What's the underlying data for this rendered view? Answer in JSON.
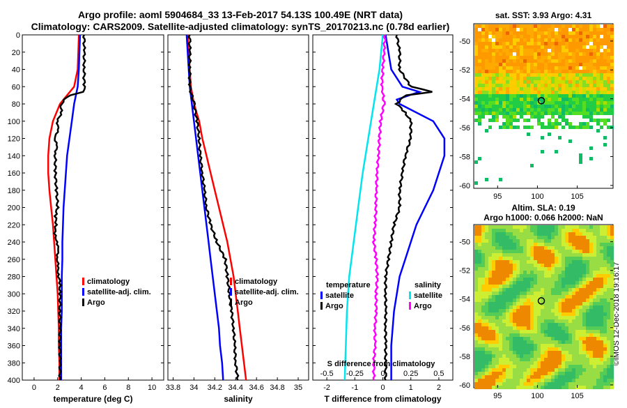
{
  "titles": {
    "line1": "Argo profile: aoml 5904684_33 13-Feb-2017 54.13S 100.49E (NRT data)",
    "line2": "Climatology: CARS2009. Satellite-adjusted climatology: synTS_20170213.nc (0.78d earlier)"
  },
  "map_titles": {
    "sst": "sat. SST: 3.93 Argo: 4.31",
    "altim1": "Altim. SLA: 0.19",
    "altim2": "Argo h1000: 0.066 h2000: NaN"
  },
  "watermark": "©IMOS 12-Dec-2018 19:16:17",
  "colors": {
    "climatology": "#ff0000",
    "satellite": "#0000ff",
    "argo": "#000000",
    "sat_salinity": "#00e5ee",
    "clim_salinity": "#ff00ff"
  },
  "chart_data": [
    {
      "type": "line",
      "id": "temperature",
      "xlabel": "temperature (deg C)",
      "ylabel": "depth",
      "xlim": [
        -1,
        11
      ],
      "ylim": [
        400,
        0
      ],
      "xticks": [
        "0",
        "2",
        "4",
        "6",
        "8",
        "10"
      ],
      "xtick_values": [
        0,
        2,
        4,
        6,
        8,
        10
      ],
      "yticks": [
        "0",
        "20",
        "40",
        "60",
        "80",
        "100",
        "120",
        "140",
        "160",
        "180",
        "200",
        "220",
        "240",
        "260",
        "280",
        "300",
        "320",
        "340",
        "360",
        "380",
        "400"
      ],
      "legend": [
        "climatology",
        "satellite-adj. clim.",
        "Argo"
      ],
      "series": [
        {
          "name": "climatology",
          "color": "#ff0000",
          "depth": [
            0,
            20,
            40,
            60,
            70,
            80,
            100,
            120,
            140,
            160,
            180,
            200,
            220,
            240,
            260,
            280,
            300,
            320,
            340,
            360,
            380,
            400
          ],
          "values": [
            3.8,
            3.75,
            3.7,
            3.4,
            2.8,
            2.2,
            1.6,
            1.3,
            1.2,
            1.2,
            1.3,
            1.45,
            1.6,
            1.7,
            1.8,
            1.9,
            2.0,
            2.05,
            2.1,
            2.1,
            2.15,
            2.15
          ]
        },
        {
          "name": "satellite-adj. clim.",
          "color": "#0000ff",
          "depth": [
            0,
            20,
            40,
            60,
            80,
            100,
            120,
            140,
            160,
            180,
            200,
            220,
            240,
            260,
            280,
            300,
            320,
            340,
            360,
            380,
            400
          ],
          "values": [
            3.9,
            3.85,
            3.8,
            3.7,
            3.4,
            3.2,
            3.0,
            2.8,
            2.7,
            2.6,
            2.5,
            2.45,
            2.4,
            2.4,
            2.35,
            2.35,
            2.35,
            2.3,
            2.3,
            2.3,
            2.3
          ]
        },
        {
          "name": "Argo",
          "color": "#000000",
          "depth": [
            0,
            20,
            40,
            60,
            66,
            70,
            75,
            80,
            90,
            100,
            110,
            120,
            130,
            140,
            160,
            180,
            200,
            210,
            220,
            230,
            240,
            250,
            260,
            270,
            280,
            290,
            300,
            320,
            340,
            360,
            380,
            400
          ],
          "values": [
            4.25,
            4.25,
            4.25,
            4.25,
            4.25,
            3.0,
            2.6,
            2.3,
            2.3,
            2.0,
            2.0,
            1.8,
            1.9,
            1.8,
            1.8,
            1.9,
            2.0,
            1.8,
            1.9,
            1.7,
            2.0,
            2.0,
            2.0,
            2.0,
            2.1,
            2.2,
            2.2,
            2.2,
            2.2,
            2.2,
            2.2,
            2.2
          ]
        }
      ]
    },
    {
      "type": "line",
      "id": "salinity",
      "xlabel": "salinity",
      "ylabel": "depth",
      "xlim": [
        33.75,
        35.1
      ],
      "ylim": [
        400,
        0
      ],
      "xticks": [
        "33.8",
        "34",
        "34.2",
        "34.4",
        "34.6",
        "34.8",
        "35"
      ],
      "xtick_values": [
        33.8,
        34.0,
        34.2,
        34.4,
        34.6,
        34.8,
        35.0
      ],
      "legend": [
        "climatology",
        "satellite-adj. clim.",
        "Argo"
      ],
      "series": [
        {
          "name": "climatology",
          "color": "#ff0000",
          "depth": [
            0,
            20,
            40,
            60,
            66,
            80,
            100,
            120,
            140,
            160,
            180,
            200,
            220,
            240,
            260,
            280,
            300,
            320,
            340,
            360,
            380,
            400
          ],
          "values": [
            33.94,
            33.95,
            33.96,
            33.97,
            33.98,
            34.0,
            34.05,
            34.08,
            34.12,
            34.16,
            34.2,
            34.24,
            34.28,
            34.32,
            34.35,
            34.38,
            34.4,
            34.42,
            34.44,
            34.46,
            34.48,
            34.5
          ]
        },
        {
          "name": "satellite-adj. clim.",
          "color": "#0000ff",
          "depth": [
            0,
            20,
            40,
            60,
            80,
            100,
            120,
            140,
            160,
            180,
            200,
            220,
            240,
            260,
            280,
            300,
            320,
            340,
            360,
            380,
            400
          ],
          "values": [
            33.93,
            33.94,
            33.95,
            33.96,
            33.98,
            34.0,
            34.02,
            34.04,
            34.06,
            34.08,
            34.1,
            34.12,
            34.14,
            34.16,
            34.18,
            34.2,
            34.22,
            34.24,
            34.25,
            34.27,
            34.28
          ]
        },
        {
          "name": "Argo",
          "color": "#000000",
          "depth": [
            0,
            20,
            40,
            60,
            66,
            80,
            100,
            120,
            140,
            160,
            180,
            200,
            220,
            240,
            260,
            280,
            300,
            320,
            340,
            360,
            380,
            400
          ],
          "values": [
            33.96,
            33.96,
            33.96,
            33.96,
            33.97,
            34.0,
            34.03,
            34.05,
            34.06,
            34.08,
            34.1,
            34.12,
            34.16,
            34.22,
            34.3,
            34.32,
            34.34,
            34.36,
            34.38,
            34.39,
            34.4,
            34.42
          ]
        }
      ]
    },
    {
      "type": "line",
      "id": "difference",
      "xlabel": "T difference from climatology",
      "xlabel2": "S difference from climatology",
      "ylabel": "depth",
      "xlim": [
        -2.5,
        2.5
      ],
      "ylim": [
        400,
        0
      ],
      "xticks": [
        "-2",
        "-1",
        "0",
        "1",
        "2"
      ],
      "xtick_values": [
        -2,
        -1,
        0,
        1,
        2
      ],
      "xticks2": [
        "-0.5",
        "-0.25",
        "0",
        "0.25",
        "0.5"
      ],
      "legend_temperature_title": "temperature",
      "legend_salinity_title": "salinity",
      "legend_temperature": [
        "satellite",
        "Argo"
      ],
      "legend_salinity": [
        "satellite",
        "Argo"
      ],
      "series": [
        {
          "name": "T satellite",
          "color": "#0000ff",
          "depth": [
            0,
            20,
            40,
            60,
            66,
            75,
            80,
            100,
            120,
            140,
            160,
            180,
            200,
            220,
            240,
            260,
            280,
            300,
            320,
            340,
            360,
            380,
            400
          ],
          "values": [
            0.1,
            0.2,
            0.3,
            0.7,
            1.3,
            0.5,
            0.6,
            1.8,
            2.2,
            2.2,
            2.0,
            1.8,
            1.5,
            1.2,
            1.0,
            0.8,
            0.6,
            0.5,
            0.4,
            0.35,
            0.3,
            0.3,
            0.3
          ]
        },
        {
          "name": "T Argo",
          "color": "#000000",
          "depth": [
            0,
            20,
            40,
            60,
            66,
            70,
            80,
            90,
            100,
            120,
            140,
            160,
            180,
            200,
            220,
            240,
            260,
            280,
            300,
            320,
            340,
            360,
            380,
            400
          ],
          "values": [
            0.5,
            0.6,
            0.6,
            1.0,
            1.8,
            0.8,
            0.5,
            0.8,
            1.0,
            1.0,
            0.8,
            0.7,
            0.6,
            0.6,
            0.4,
            0.3,
            0.2,
            0.1,
            0.1,
            0.1,
            0.1,
            0.1,
            0.1,
            0.1
          ]
        },
        {
          "name": "S satellite",
          "color": "#00e5ee",
          "depth": [
            0,
            40,
            80,
            120,
            160,
            200,
            240,
            280,
            320,
            360,
            400
          ],
          "values": [
            0.0,
            -0.03,
            -0.08,
            -0.13,
            -0.18,
            -0.22,
            -0.26,
            -0.3,
            -0.32,
            -0.33,
            -0.34
          ]
        },
        {
          "name": "S Argo",
          "color": "#ff00ff",
          "depth": [
            0,
            20,
            40,
            60,
            66,
            80,
            100,
            120,
            140,
            160,
            180,
            200,
            220,
            240,
            260,
            280,
            300,
            320,
            340,
            360,
            380,
            400
          ],
          "values": [
            0.02,
            0.01,
            0.0,
            -0.01,
            0.0,
            0.01,
            -0.02,
            -0.03,
            -0.04,
            -0.05,
            -0.06,
            -0.06,
            -0.07,
            -0.08,
            -0.06,
            -0.05,
            -0.06,
            -0.06,
            -0.07,
            -0.07,
            -0.08,
            -0.08
          ]
        }
      ]
    },
    {
      "type": "heatmap",
      "id": "sst-map",
      "title": "sat. SST: 3.93 Argo: 4.31",
      "xticks": [
        "95",
        "100",
        "105"
      ],
      "xtick_values": [
        95,
        100,
        105
      ],
      "yticks": [
        "-50",
        "-52",
        "-54",
        "-56",
        "-58",
        "-60"
      ],
      "ytick_values": [
        -50,
        -52,
        -54,
        -56,
        -58,
        -60
      ],
      "xlim": [
        92,
        109.5
      ],
      "ylim": [
        -60.2,
        -48.8
      ],
      "argo_position": [
        100.49,
        -54.13
      ]
    },
    {
      "type": "heatmap",
      "id": "sla-map",
      "title": "Altim. SLA: 0.19",
      "xticks": [
        "95",
        "100",
        "105"
      ],
      "xtick_values": [
        95,
        100,
        105
      ],
      "yticks": [
        "-50",
        "-52",
        "-54",
        "-56",
        "-58",
        "-60"
      ],
      "ytick_values": [
        -50,
        -52,
        -54,
        -56,
        -58,
        -60
      ],
      "xlim": [
        92,
        109.5
      ],
      "ylim": [
        -60.2,
        -48.8
      ],
      "argo_position": [
        100.49,
        -54.13
      ]
    }
  ]
}
